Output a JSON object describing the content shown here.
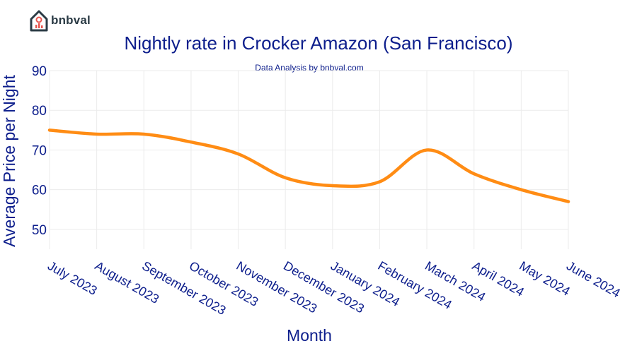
{
  "brand": {
    "name": "bnbval",
    "logo_icon": "house-chart-icon",
    "logo_color": "#2b3b45",
    "logo_accent": "#e8554e"
  },
  "colors": {
    "line": "#ff8c14",
    "text": "#0d1e8c",
    "grid": "#ebebeb"
  },
  "chart_data": {
    "type": "line",
    "title": "Nightly rate in Crocker Amazon (San Francisco)",
    "subtitle": "Data Analysis by bnbval.com",
    "xlabel": "Month",
    "ylabel": "Average Price per Night",
    "categories": [
      "July 2023",
      "August 2023",
      "September 2023",
      "October 2023",
      "November 2023",
      "December 2023",
      "January 2024",
      "February 2024",
      "March 2024",
      "April 2024",
      "May 2024",
      "June 2024"
    ],
    "series": [
      {
        "values": [
          75,
          74,
          74,
          72,
          69,
          63,
          61,
          62,
          70,
          64,
          60,
          57
        ]
      }
    ],
    "yticks": [
      50,
      60,
      70,
      80,
      90
    ],
    "ylim": [
      45,
      90
    ],
    "grid": true,
    "legend": "none",
    "smooth": true
  }
}
